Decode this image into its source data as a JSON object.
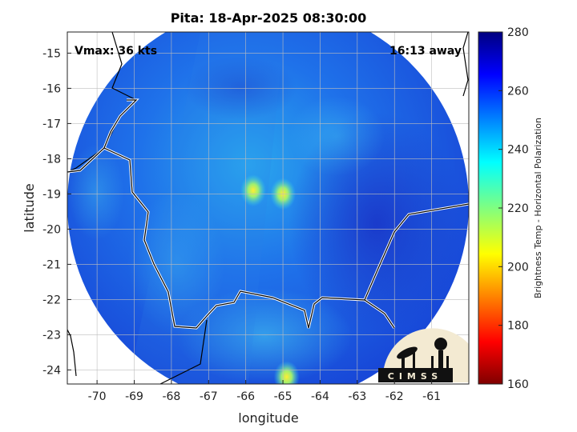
{
  "chart_data": {
    "type": "heatmap",
    "title": "Pita: 18-Apr-2025 08:30:00",
    "xlabel": "longitude",
    "ylabel": "latitude",
    "xlim": [
      -70.8,
      -60.0
    ],
    "ylim": [
      -24.4,
      -14.4
    ],
    "x_ticks": [
      -70,
      -69,
      -68,
      -67,
      -66,
      -65,
      -64,
      -63,
      -62,
      -61
    ],
    "y_ticks": [
      -15,
      -16,
      -17,
      -18,
      -19,
      -20,
      -21,
      -22,
      -23,
      -24
    ],
    "grid": true,
    "annotations": {
      "top_left": "Vmax: 36 kts",
      "top_right": "16:13 away"
    },
    "colorbar": {
      "label": "Brightness Temp - Horizontal Polarization",
      "range": [
        160,
        280
      ],
      "ticks": [
        160,
        180,
        200,
        220,
        240,
        260,
        280
      ],
      "colormap": "jet"
    },
    "swath": {
      "center_lon": -65.4,
      "center_lat": -19.3,
      "radius_deg": 5.4
    },
    "warm_spots": [
      {
        "lon": -65.0,
        "lat": -19.0,
        "value": 208
      },
      {
        "lon": -65.8,
        "lat": -18.9,
        "value": 215
      },
      {
        "lon": -64.9,
        "lat": -24.2,
        "value": 212
      }
    ],
    "logo_text": "CIMSS"
  }
}
